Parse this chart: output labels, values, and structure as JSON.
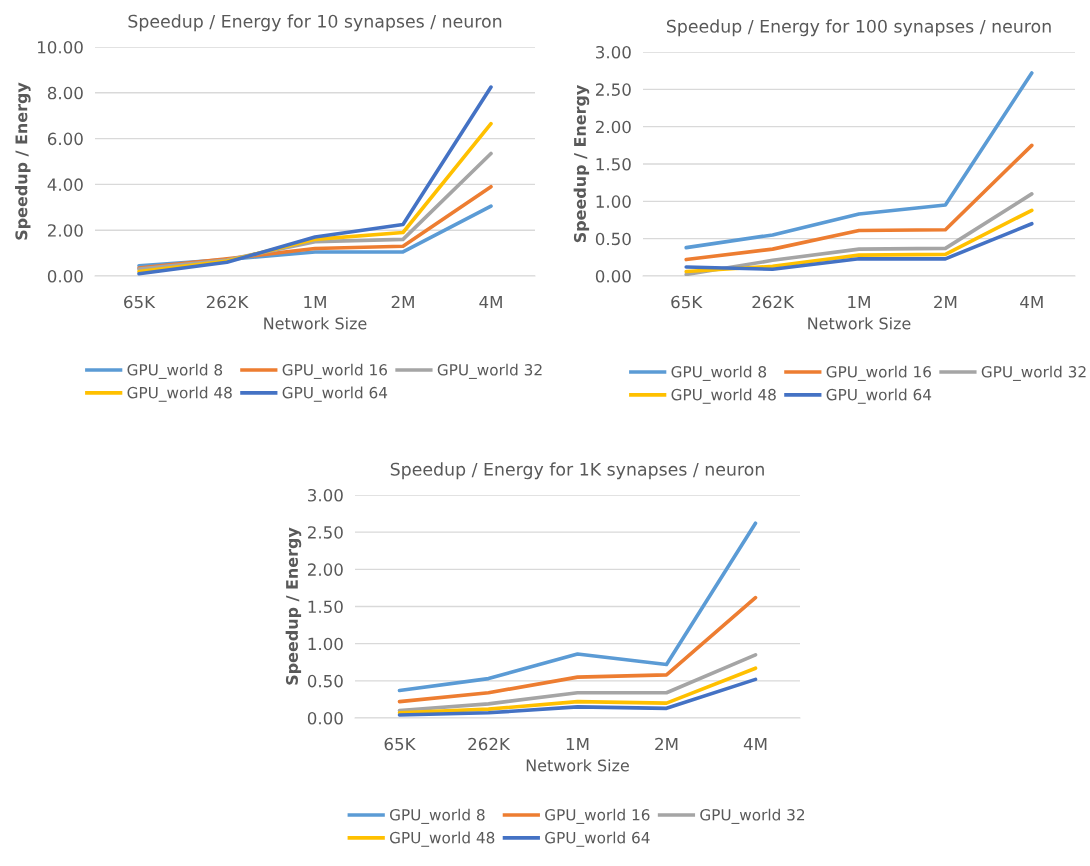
{
  "chart_data": [
    {
      "type": "line",
      "title": "Speedup / Energy for 10 synapses / neuron",
      "xlabel": "Network Size",
      "ylabel": "Speedup / Energy",
      "categories": [
        "65K",
        "262K",
        "1M",
        "2M",
        "4M"
      ],
      "ylim": [
        0,
        10
      ],
      "yticks": [
        {
          "value": 0,
          "label": "0.00"
        },
        {
          "value": 2,
          "label": "2.00"
        },
        {
          "value": 4,
          "label": "4.00"
        },
        {
          "value": 6,
          "label": "6.00"
        },
        {
          "value": 8,
          "label": "8.00"
        },
        {
          "value": 10,
          "label": "10.00"
        }
      ],
      "grid": "y",
      "legend": "bottom",
      "marker": "none",
      "line_style": "solid",
      "series": [
        {
          "name": "GPU_world 8",
          "color": "#5b9bd5",
          "values": [
            0.45,
            0.72,
            1.05,
            1.05,
            3.05
          ]
        },
        {
          "name": "GPU_world 16",
          "color": "#ed7d31",
          "values": [
            0.35,
            0.75,
            1.2,
            1.3,
            3.9
          ]
        },
        {
          "name": "GPU_world 32",
          "color": "#a5a5a5",
          "values": [
            0.3,
            0.7,
            1.5,
            1.6,
            5.35
          ]
        },
        {
          "name": "GPU_world 48",
          "color": "#ffc000",
          "values": [
            0.2,
            0.65,
            1.6,
            1.9,
            6.65
          ]
        },
        {
          "name": "GPU_world 64",
          "color": "#4472c4",
          "values": [
            0.1,
            0.6,
            1.7,
            2.25,
            8.25
          ]
        }
      ]
    },
    {
      "type": "line",
      "title": "Speedup / Energy for 100 synapses / neuron",
      "xlabel": "Network Size",
      "ylabel": "Speedup / Energy",
      "categories": [
        "65K",
        "262K",
        "1M",
        "2M",
        "4M"
      ],
      "ylim": [
        0,
        3
      ],
      "yticks": [
        {
          "value": 0,
          "label": "0.00"
        },
        {
          "value": 0.5,
          "label": "0.50"
        },
        {
          "value": 1,
          "label": "1.00"
        },
        {
          "value": 1.5,
          "label": "1.50"
        },
        {
          "value": 2,
          "label": "2.00"
        },
        {
          "value": 2.5,
          "label": "2.50"
        },
        {
          "value": 3,
          "label": "3.00"
        }
      ],
      "grid": "y",
      "legend": "bottom",
      "marker": "none",
      "line_style": "solid",
      "series": [
        {
          "name": "GPU_world 8",
          "color": "#5b9bd5",
          "values": [
            0.38,
            0.55,
            0.83,
            0.95,
            2.72
          ]
        },
        {
          "name": "GPU_world 16",
          "color": "#ed7d31",
          "values": [
            0.22,
            0.36,
            0.61,
            0.62,
            1.75
          ]
        },
        {
          "name": "GPU_world 32",
          "color": "#a5a5a5",
          "values": [
            0.02,
            0.21,
            0.36,
            0.37,
            1.1
          ]
        },
        {
          "name": "GPU_world 48",
          "color": "#ffc000",
          "values": [
            0.06,
            0.13,
            0.28,
            0.29,
            0.88
          ]
        },
        {
          "name": "GPU_world 64",
          "color": "#4472c4",
          "values": [
            0.12,
            0.09,
            0.23,
            0.23,
            0.7
          ]
        }
      ]
    },
    {
      "type": "line",
      "title": "Speedup / Energy for 1K synapses / neuron",
      "xlabel": "Network Size",
      "ylabel": "Speedup / Energy",
      "categories": [
        "65K",
        "262K",
        "1M",
        "2M",
        "4M"
      ],
      "ylim": [
        0,
        3
      ],
      "yticks": [
        {
          "value": 0,
          "label": "0.00"
        },
        {
          "value": 0.5,
          "label": "0.50"
        },
        {
          "value": 1,
          "label": "1.00"
        },
        {
          "value": 1.5,
          "label": "1.50"
        },
        {
          "value": 2,
          "label": "2.00"
        },
        {
          "value": 2.5,
          "label": "2.50"
        },
        {
          "value": 3,
          "label": "3.00"
        }
      ],
      "grid": "y",
      "legend": "bottom",
      "marker": "none",
      "line_style": "solid",
      "series": [
        {
          "name": "GPU_world 8",
          "color": "#5b9bd5",
          "values": [
            0.37,
            0.53,
            0.86,
            0.72,
            2.62
          ]
        },
        {
          "name": "GPU_world 16",
          "color": "#ed7d31",
          "values": [
            0.22,
            0.34,
            0.55,
            0.58,
            1.62
          ]
        },
        {
          "name": "GPU_world 32",
          "color": "#a5a5a5",
          "values": [
            0.1,
            0.19,
            0.34,
            0.34,
            0.85
          ]
        },
        {
          "name": "GPU_world 48",
          "color": "#ffc000",
          "values": [
            0.07,
            0.12,
            0.22,
            0.2,
            0.67
          ]
        },
        {
          "name": "GPU_world 64",
          "color": "#4472c4",
          "values": [
            0.04,
            0.07,
            0.15,
            0.13,
            0.52
          ]
        }
      ]
    }
  ]
}
